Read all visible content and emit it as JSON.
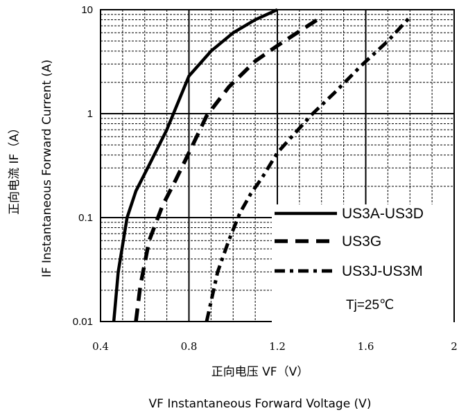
{
  "chart_data": {
    "type": "line",
    "title": "",
    "xlabel_cn": "正向电压 VF（V）",
    "xlabel_en": "VF Instantaneous Forward Voltage (V)",
    "ylabel_cn": "正向电流 IF（A）",
    "ylabel_en": "IF Instantaneous Forward Current (A)",
    "xlim": [
      0.4,
      2.0
    ],
    "ylim": [
      0.01,
      10
    ],
    "yscale": "log",
    "x_ticks": [
      0.4,
      0.8,
      1.2,
      1.6,
      2.0
    ],
    "x_tick_labels": [
      "0.4",
      "0.8",
      "1.2",
      "1.6",
      "2"
    ],
    "y_ticks": [
      0.01,
      0.1,
      1,
      10
    ],
    "y_tick_labels": [
      "0.01",
      "0.1",
      "1",
      "10"
    ],
    "grid": true,
    "legend_position": "lower-right",
    "annotation": "Tj=25℃",
    "series": [
      {
        "name": "US3A-US3D",
        "style": "solid",
        "x": [
          0.46,
          0.48,
          0.52,
          0.56,
          0.62,
          0.7,
          0.8,
          0.9,
          1.0,
          1.1,
          1.2
        ],
        "y": [
          0.01,
          0.03,
          0.1,
          0.18,
          0.32,
          0.7,
          2.3,
          4.0,
          6.0,
          8.0,
          10.0
        ]
      },
      {
        "name": "US3G",
        "style": "dashed",
        "x": [
          0.56,
          0.58,
          0.62,
          0.68,
          0.74,
          0.8,
          0.88,
          0.98,
          1.1,
          1.2,
          1.3,
          1.4
        ],
        "y": [
          0.01,
          0.022,
          0.06,
          0.13,
          0.23,
          0.42,
          0.95,
          1.8,
          3.2,
          4.5,
          6.2,
          8.5
        ]
      },
      {
        "name": "US3J-US3M",
        "style": "dash-dot",
        "x": [
          0.88,
          0.93,
          0.98,
          1.03,
          1.08,
          1.13,
          1.2,
          1.28,
          1.36,
          1.46,
          1.58,
          1.7,
          1.8
        ],
        "y": [
          0.01,
          0.03,
          0.06,
          0.11,
          0.17,
          0.24,
          0.42,
          0.65,
          1.0,
          1.6,
          2.9,
          5.0,
          8.5
        ]
      }
    ]
  }
}
